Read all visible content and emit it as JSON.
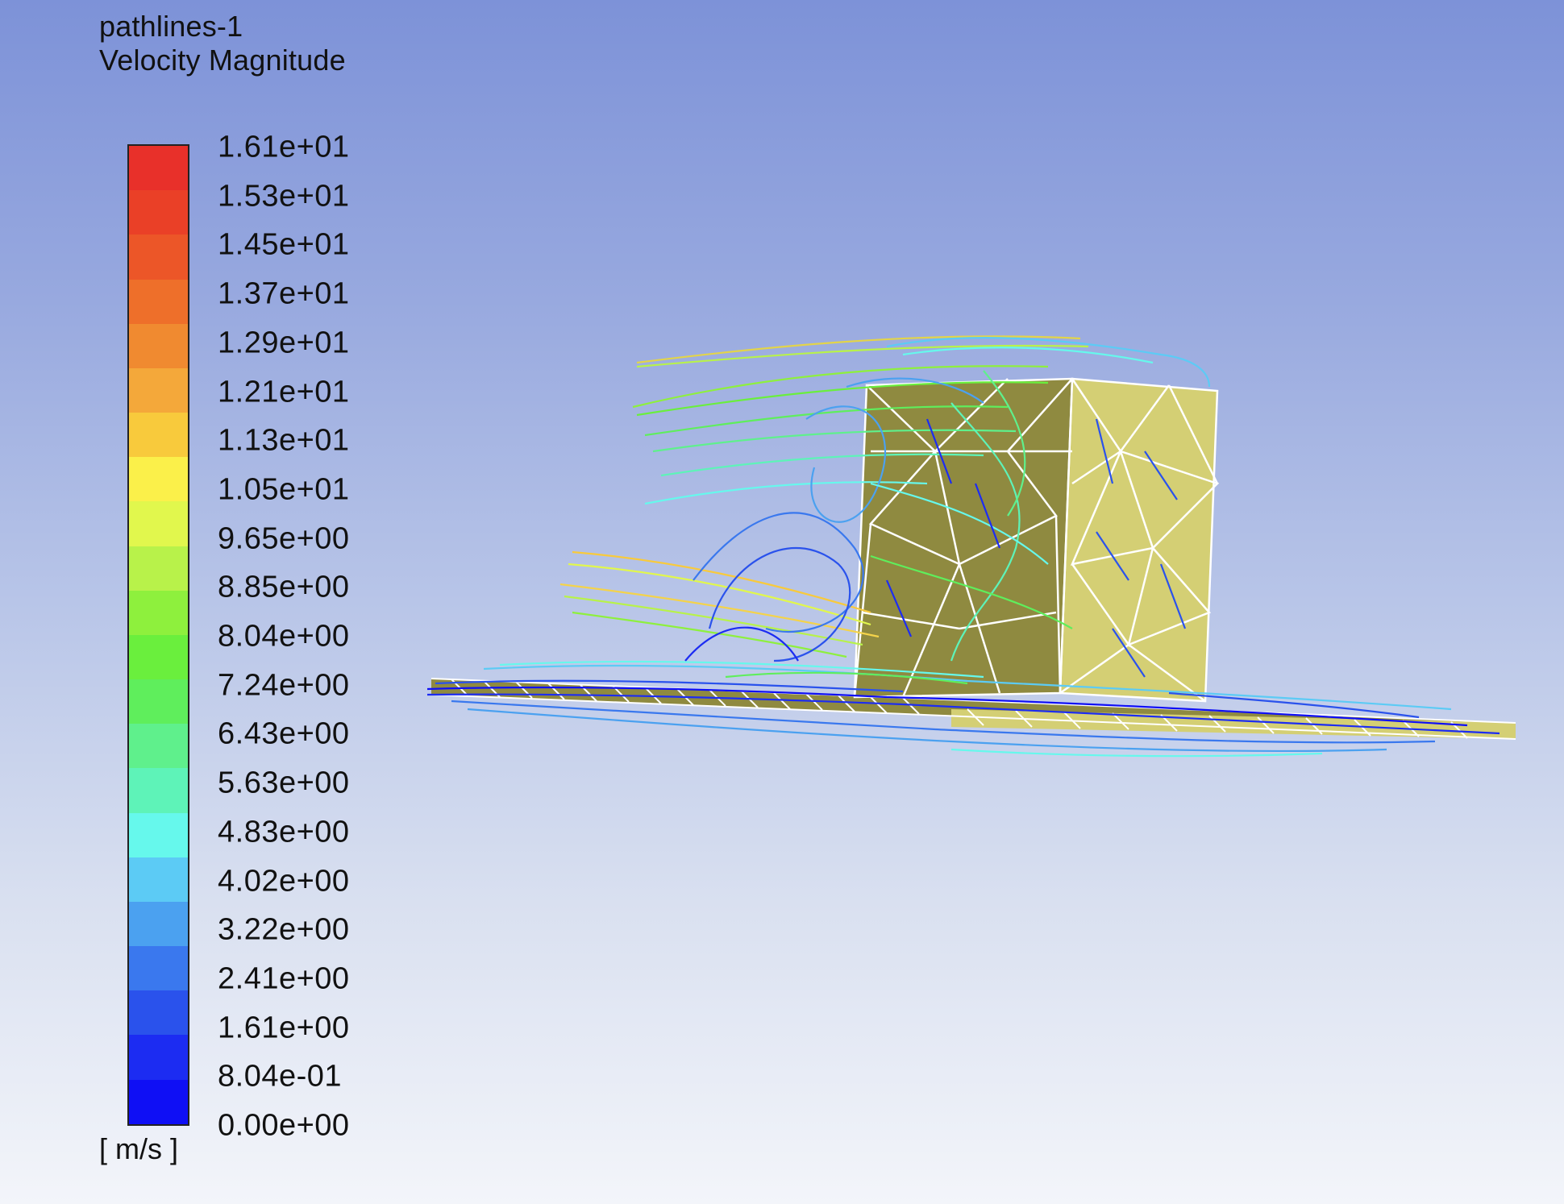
{
  "header": {
    "object_name": "pathlines-1",
    "variable": "Velocity Magnitude"
  },
  "legend": {
    "units": "[ m/s ]",
    "tick_labels": [
      "1.61e+01",
      "1.53e+01",
      "1.45e+01",
      "1.37e+01",
      "1.29e+01",
      "1.21e+01",
      "1.13e+01",
      "1.05e+01",
      "9.65e+00",
      "8.85e+00",
      "8.04e+00",
      "7.24e+00",
      "6.43e+00",
      "5.63e+00",
      "4.83e+00",
      "4.02e+00",
      "3.22e+00",
      "2.41e+00",
      "1.61e+00",
      "8.04e-01",
      "0.00e+00"
    ],
    "band_colors": [
      "#e8302a",
      "#ea4027",
      "#ec5628",
      "#ee6f2a",
      "#f08a30",
      "#f4a83a",
      "#f8ca3c",
      "#fbf04a",
      "#e1f74d",
      "#b8f24a",
      "#8ef03d",
      "#6aef3d",
      "#5fee5c",
      "#5ff08c",
      "#5ef3b8",
      "#66f8ec",
      "#5ccbf5",
      "#4ba1f0",
      "#3a78ee",
      "#2a52ec",
      "#1c2cf2",
      "#0f0ff5"
    ]
  },
  "scene": {
    "building_dark_color": "#8f8a40",
    "building_light_color": "#d4cf74",
    "mesh_line_color": "#ffffff"
  }
}
